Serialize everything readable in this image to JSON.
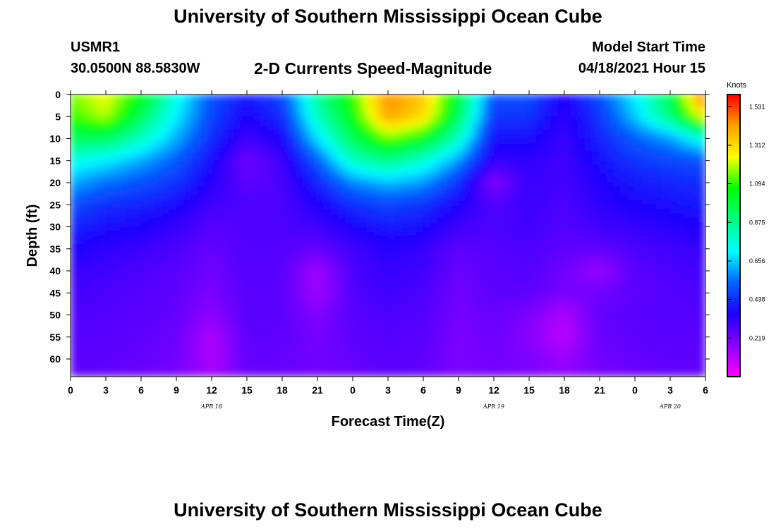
{
  "header": {
    "title": "University of Southern Mississippi Ocean Cube",
    "station": "USMR1",
    "coords": "30.0500N  88.5830W",
    "subtitle": "2-D Currents Speed-Magnitude",
    "start_label": "Model Start Time",
    "start_value": "04/18/2021 Hour 15"
  },
  "footer": {
    "title": "University of Southern Mississippi Ocean Cube"
  },
  "chart_data": {
    "type": "heatmap",
    "title": "2-D Currents Speed-Magnitude",
    "xlabel": "Forecast Time(Z)",
    "ylabel": "Depth (ft)",
    "x_ticks": [
      "0",
      "3",
      "6",
      "9",
      "12",
      "15",
      "18",
      "21",
      "0",
      "3",
      "6",
      "9",
      "12",
      "15",
      "18",
      "21",
      "0",
      "3",
      "6"
    ],
    "date_labels": [
      {
        "text": "APR 18",
        "hour": 12
      },
      {
        "text": "APR 19",
        "hour": 36
      },
      {
        "text": "APR 20",
        "hour": 51
      }
    ],
    "y_ticks": [
      "0",
      "5",
      "10",
      "15",
      "20",
      "25",
      "30",
      "35",
      "40",
      "45",
      "50",
      "55",
      "60"
    ],
    "ylim": [
      0,
      64
    ],
    "xlim_hours": [
      0,
      54
    ],
    "colorbar": {
      "units": "Knots",
      "ticks": [
        "1.531",
        "1.312",
        "1.094",
        "0.875",
        "0.656",
        "0.438",
        "0.219"
      ],
      "range": [
        0,
        1.6
      ],
      "colors": [
        "#ff00ff",
        "#8a00ff",
        "#1e00ff",
        "#0064ff",
        "#00ffff",
        "#00ff80",
        "#00ff00",
        "#ffff00",
        "#ffa000",
        "#ff0000"
      ]
    },
    "x_hours": [
      0,
      3,
      6,
      9,
      12,
      15,
      18,
      21,
      24,
      27,
      30,
      33,
      36,
      39,
      42,
      45,
      48,
      51,
      54
    ],
    "depths": [
      0,
      5,
      10,
      15,
      20,
      25,
      30,
      35,
      40,
      45,
      50,
      55,
      60,
      64
    ],
    "speed_knots": [
      [
        1.15,
        1.25,
        1.05,
        0.75,
        0.5,
        0.4,
        0.48,
        0.85,
        1.1,
        1.45,
        1.35,
        1.0,
        0.5,
        0.5,
        0.35,
        0.5,
        0.7,
        0.95,
        1.55
      ],
      [
        1.1,
        1.2,
        0.95,
        0.7,
        0.48,
        0.36,
        0.43,
        0.8,
        1.05,
        1.42,
        1.32,
        0.95,
        0.45,
        0.45,
        0.33,
        0.45,
        0.65,
        0.9,
        1.3
      ],
      [
        0.95,
        0.95,
        0.8,
        0.62,
        0.44,
        0.3,
        0.36,
        0.68,
        0.95,
        1.15,
        1.05,
        0.8,
        0.38,
        0.38,
        0.31,
        0.42,
        0.52,
        0.6,
        0.78
      ],
      [
        0.75,
        0.7,
        0.62,
        0.52,
        0.38,
        0.22,
        0.3,
        0.52,
        0.8,
        0.88,
        0.78,
        0.6,
        0.32,
        0.33,
        0.3,
        0.38,
        0.45,
        0.48,
        0.5
      ],
      [
        0.62,
        0.55,
        0.5,
        0.45,
        0.34,
        0.25,
        0.28,
        0.42,
        0.58,
        0.64,
        0.6,
        0.45,
        0.18,
        0.32,
        0.29,
        0.35,
        0.4,
        0.42,
        0.44
      ],
      [
        0.5,
        0.44,
        0.42,
        0.38,
        0.3,
        0.28,
        0.28,
        0.35,
        0.44,
        0.48,
        0.45,
        0.36,
        0.27,
        0.31,
        0.28,
        0.33,
        0.36,
        0.38,
        0.4
      ],
      [
        0.42,
        0.38,
        0.36,
        0.32,
        0.26,
        0.28,
        0.28,
        0.3,
        0.36,
        0.4,
        0.38,
        0.3,
        0.28,
        0.3,
        0.27,
        0.3,
        0.32,
        0.34,
        0.36
      ],
      [
        0.36,
        0.33,
        0.31,
        0.28,
        0.24,
        0.27,
        0.27,
        0.24,
        0.3,
        0.34,
        0.32,
        0.25,
        0.27,
        0.28,
        0.25,
        0.25,
        0.28,
        0.3,
        0.32
      ],
      [
        0.32,
        0.3,
        0.28,
        0.26,
        0.22,
        0.27,
        0.26,
        0.14,
        0.28,
        0.32,
        0.3,
        0.23,
        0.26,
        0.27,
        0.22,
        0.15,
        0.26,
        0.28,
        0.3
      ],
      [
        0.3,
        0.28,
        0.27,
        0.25,
        0.2,
        0.26,
        0.26,
        0.14,
        0.27,
        0.3,
        0.28,
        0.22,
        0.25,
        0.25,
        0.21,
        0.22,
        0.25,
        0.27,
        0.28
      ],
      [
        0.28,
        0.27,
        0.26,
        0.24,
        0.17,
        0.26,
        0.25,
        0.19,
        0.26,
        0.28,
        0.27,
        0.21,
        0.24,
        0.2,
        0.12,
        0.24,
        0.26,
        0.27,
        0.27
      ],
      [
        0.27,
        0.26,
        0.25,
        0.23,
        0.12,
        0.25,
        0.25,
        0.21,
        0.25,
        0.27,
        0.26,
        0.2,
        0.23,
        0.18,
        0.1,
        0.23,
        0.25,
        0.26,
        0.26
      ],
      [
        0.26,
        0.25,
        0.24,
        0.22,
        0.12,
        0.24,
        0.24,
        0.22,
        0.24,
        0.26,
        0.25,
        0.2,
        0.22,
        0.2,
        0.15,
        0.22,
        0.24,
        0.25,
        0.25
      ],
      [
        0.25,
        0.24,
        0.23,
        0.21,
        0.14,
        0.23,
        0.23,
        0.22,
        0.23,
        0.25,
        0.24,
        0.2,
        0.21,
        0.2,
        0.17,
        0.21,
        0.23,
        0.24,
        0.24
      ]
    ]
  }
}
